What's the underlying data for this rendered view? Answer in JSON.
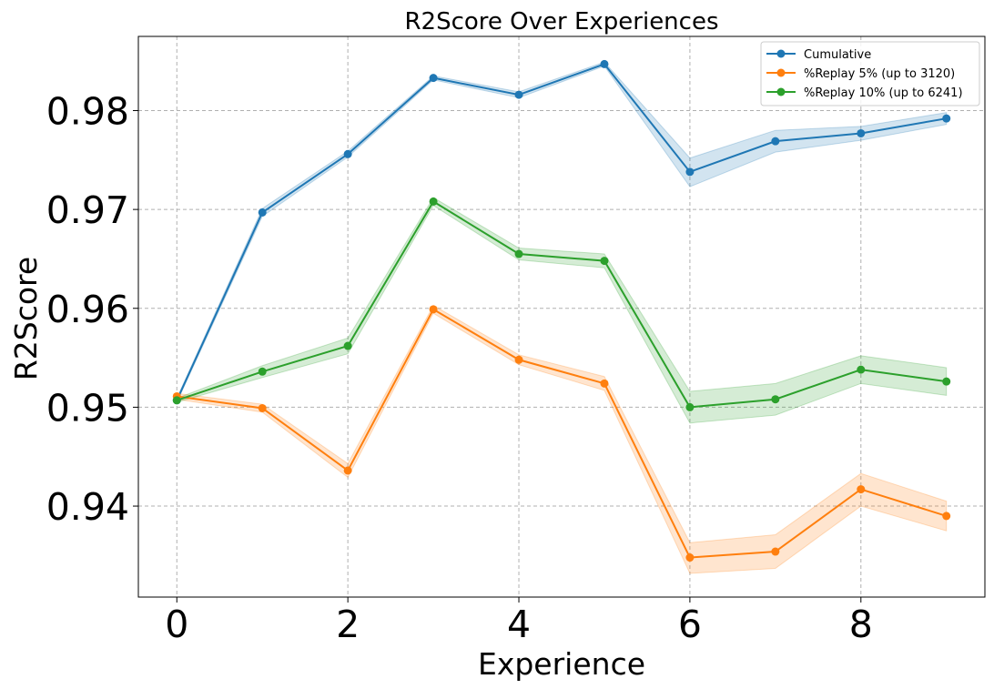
{
  "chart_data": {
    "type": "line",
    "title": "R2Score Over Experiences",
    "xlabel": "Experience",
    "ylabel": "R2Score",
    "x": [
      0,
      1,
      2,
      3,
      4,
      5,
      6,
      7,
      8,
      9
    ],
    "xticks": [
      0,
      2,
      4,
      6,
      8
    ],
    "xtick_labels": [
      "0",
      "2",
      "4",
      "6",
      "8"
    ],
    "yticks": [
      0.94,
      0.95,
      0.96,
      0.97,
      0.98
    ],
    "ytick_labels": [
      "0.94",
      "0.95",
      "0.96",
      "0.97",
      "0.98"
    ],
    "xlim": [
      -0.45,
      9.45
    ],
    "ylim": [
      0.9308,
      0.9875
    ],
    "grid": true,
    "legend_position": "top-right",
    "series": [
      {
        "name": "Cumulative",
        "color": "#1f77b4",
        "values": [
          0.9507,
          0.9697,
          0.9756,
          0.9833,
          0.9816,
          0.9847,
          0.9738,
          0.9769,
          0.9777,
          0.9792
        ],
        "lower": [
          0.9505,
          0.9693,
          0.9753,
          0.9831,
          0.9813,
          0.9845,
          0.9723,
          0.9758,
          0.977,
          0.9786
        ],
        "upper": [
          0.9509,
          0.9701,
          0.9759,
          0.9835,
          0.9819,
          0.9849,
          0.9752,
          0.978,
          0.9784,
          0.9798
        ]
      },
      {
        "name": "%Replay 5% (up to 3120)",
        "color": "#ff7f0e",
        "values": [
          0.9511,
          0.9499,
          0.9436,
          0.9599,
          0.9548,
          0.9524,
          0.9348,
          0.9354,
          0.9417,
          0.939
        ],
        "lower": [
          0.9508,
          0.9495,
          0.9429,
          0.9595,
          0.9543,
          0.9517,
          0.9332,
          0.9337,
          0.94,
          0.9375
        ],
        "upper": [
          0.9514,
          0.9503,
          0.9443,
          0.9603,
          0.9553,
          0.9531,
          0.9363,
          0.9371,
          0.9433,
          0.9405
        ]
      },
      {
        "name": "%Replay 10% (up to 6241)",
        "color": "#2ca02c",
        "values": [
          0.9507,
          0.9536,
          0.9562,
          0.9708,
          0.9655,
          0.9648,
          0.95,
          0.9508,
          0.9538,
          0.9526
        ],
        "lower": [
          0.9505,
          0.953,
          0.9554,
          0.9704,
          0.9649,
          0.9641,
          0.9484,
          0.9492,
          0.9524,
          0.9512
        ],
        "upper": [
          0.9509,
          0.9542,
          0.957,
          0.9712,
          0.9661,
          0.9655,
          0.9516,
          0.9524,
          0.9552,
          0.954
        ]
      }
    ]
  }
}
